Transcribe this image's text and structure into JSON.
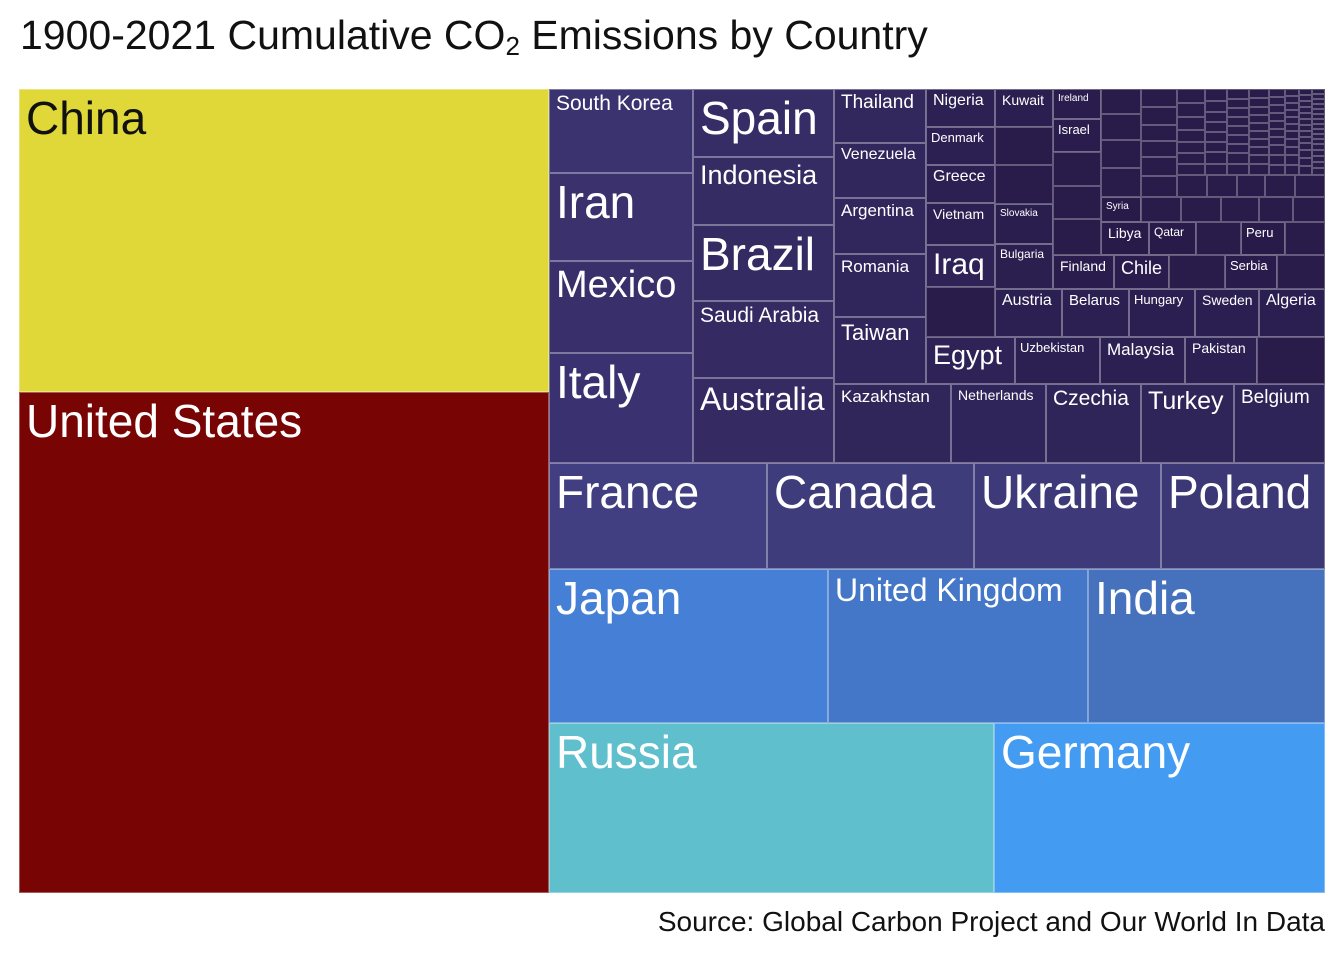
{
  "title_main": "1900-2021 Cumulative CO",
  "title_sub": "2",
  "title_rest": " Emissions by Country",
  "source": "Source: Global Carbon Project and Our World In Data",
  "chart_data": {
    "type": "treemap",
    "title": "1900-2021 Cumulative CO2 Emissions by Country",
    "value_unit": "cumulative CO2 emissions",
    "tiles": [
      {
        "name": "China",
        "color": "#e0d838"
      },
      {
        "name": "United States",
        "color": "#780404"
      },
      {
        "name": "Russia",
        "color": "#60bfcc"
      },
      {
        "name": "Germany",
        "color": "#439cf1"
      },
      {
        "name": "Japan",
        "color": "#4680d6"
      },
      {
        "name": "United Kingdom",
        "color": "#4577c8"
      },
      {
        "name": "India",
        "color": "#4671bd"
      },
      {
        "name": "France",
        "color": "#413e81"
      },
      {
        "name": "Canada",
        "color": "#3f3c7c"
      },
      {
        "name": "Ukraine",
        "color": "#3e3a79"
      },
      {
        "name": "Poland",
        "color": "#3c3876"
      },
      {
        "name": "South Korea",
        "color": "#3b3370"
      },
      {
        "name": "Iran",
        "color": "#3a316d"
      },
      {
        "name": "Mexico",
        "color": "#39306b"
      },
      {
        "name": "Italy",
        "color": "#3a3270"
      },
      {
        "name": "Spain",
        "color": "#372d66"
      },
      {
        "name": "Indonesia",
        "color": "#362c64"
      },
      {
        "name": "Brazil",
        "color": "#352b63"
      },
      {
        "name": "Saudi Arabia",
        "color": "#352a62"
      },
      {
        "name": "Australia",
        "color": "#352a62"
      },
      {
        "name": "Thailand",
        "color": "#33285e"
      },
      {
        "name": "Venezuela",
        "color": "#32275d"
      },
      {
        "name": "Argentina",
        "color": "#32275c"
      },
      {
        "name": "Romania",
        "color": "#31265b"
      },
      {
        "name": "Taiwan",
        "color": "#31265b"
      },
      {
        "name": "Kazakhstan",
        "color": "#31265a"
      },
      {
        "name": "Netherlands",
        "color": "#30255a"
      },
      {
        "name": "Czechia",
        "color": "#302559"
      },
      {
        "name": "Turkey",
        "color": "#302559"
      },
      {
        "name": "Belgium",
        "color": "#2f2458"
      },
      {
        "name": "Nigeria",
        "color": "#2d2154"
      },
      {
        "name": "Denmark",
        "color": "#2c2053"
      },
      {
        "name": "Greece",
        "color": "#2c2053"
      },
      {
        "name": "Vietnam",
        "color": "#2c2052"
      },
      {
        "name": "Iraq",
        "color": "#2e2256"
      },
      {
        "name": "Egypt",
        "color": "#2e2256"
      },
      {
        "name": "Kuwait",
        "color": "#2b1e50"
      },
      {
        "name": "Slovakia",
        "color": "#2a1e4f"
      },
      {
        "name": "Bulgaria",
        "color": "#2b1f50"
      },
      {
        "name": "Austria",
        "color": "#2c2052"
      },
      {
        "name": "Belarus",
        "color": "#2c2052"
      },
      {
        "name": "Hungary",
        "color": "#2b1f51"
      },
      {
        "name": "Sweden",
        "color": "#2b1f51"
      },
      {
        "name": "Algeria",
        "color": "#2b1f51"
      },
      {
        "name": "Uzbekistan",
        "color": "#2c2053"
      },
      {
        "name": "Malaysia",
        "color": "#2c2053"
      },
      {
        "name": "Pakistan",
        "color": "#2c2053"
      },
      {
        "name": "Ireland",
        "color": "#2a1c4d"
      },
      {
        "name": "Israel",
        "color": "#2a1c4d"
      },
      {
        "name": "Finland",
        "color": "#2a1d4e"
      },
      {
        "name": "Chile",
        "color": "#2a1d4e"
      },
      {
        "name": "Serbia",
        "color": "#291c4c"
      },
      {
        "name": "Syria",
        "color": "#281b4a"
      },
      {
        "name": "Libya",
        "color": "#281b4a"
      },
      {
        "name": "Qatar",
        "color": "#281b4a"
      },
      {
        "name": "Peru",
        "color": "#281b4a"
      }
    ]
  }
}
